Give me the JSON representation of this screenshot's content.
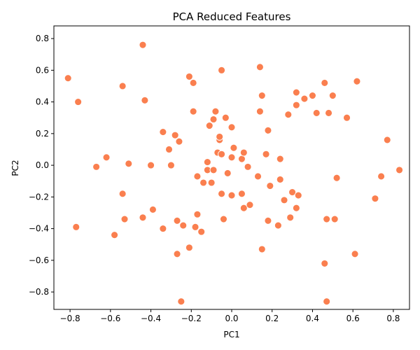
{
  "chart_data": {
    "type": "scatter",
    "title": "PCA Reduced Features",
    "xlabel": "PC1",
    "ylabel": "PC2",
    "xlim": [
      -0.88,
      0.88
    ],
    "ylim": [
      -0.91,
      0.88
    ],
    "xticks": [
      -0.8,
      -0.6,
      -0.4,
      -0.2,
      0.0,
      0.2,
      0.4,
      0.6,
      0.8
    ],
    "xtick_labels": [
      "−0.8",
      "−0.6",
      "−0.4",
      "−0.2",
      "0.0",
      "0.2",
      "0.4",
      "0.6",
      "0.8"
    ],
    "yticks": [
      -0.8,
      -0.6,
      -0.4,
      -0.2,
      0.0,
      0.2,
      0.4,
      0.6,
      0.8
    ],
    "ytick_labels": [
      "−0.8",
      "−0.6",
      "−0.4",
      "−0.2",
      "0.0",
      "0.2",
      "0.4",
      "0.6",
      "0.8"
    ],
    "grid": false,
    "marker_color": "#fa7f4f",
    "marker_edge_color": "#ffffff",
    "series": [
      {
        "points": [
          [
            -0.81,
            0.55
          ],
          [
            -0.76,
            0.4
          ],
          [
            -0.77,
            -0.39
          ],
          [
            -0.67,
            -0.01
          ],
          [
            -0.62,
            0.05
          ],
          [
            -0.58,
            -0.44
          ],
          [
            -0.54,
            0.5
          ],
          [
            -0.54,
            -0.18
          ],
          [
            -0.53,
            -0.34
          ],
          [
            -0.51,
            0.01
          ],
          [
            -0.44,
            0.76
          ],
          [
            -0.43,
            0.41
          ],
          [
            -0.44,
            -0.33
          ],
          [
            -0.4,
            0.0
          ],
          [
            -0.39,
            -0.28
          ],
          [
            -0.34,
            0.21
          ],
          [
            -0.34,
            -0.4
          ],
          [
            -0.31,
            0.1
          ],
          [
            -0.3,
            0.0
          ],
          [
            -0.28,
            0.19
          ],
          [
            -0.27,
            -0.35
          ],
          [
            -0.27,
            -0.56
          ],
          [
            -0.26,
            0.15
          ],
          [
            -0.24,
            -0.38
          ],
          [
            -0.25,
            -0.86
          ],
          [
            -0.21,
            0.56
          ],
          [
            -0.19,
            0.52
          ],
          [
            -0.19,
            0.34
          ],
          [
            -0.21,
            -0.52
          ],
          [
            -0.17,
            -0.07
          ],
          [
            -0.17,
            -0.31
          ],
          [
            -0.18,
            -0.39
          ],
          [
            -0.15,
            -0.42
          ],
          [
            -0.14,
            -0.11
          ],
          [
            -0.12,
            0.02
          ],
          [
            -0.12,
            -0.03
          ],
          [
            -0.11,
            0.25
          ],
          [
            -0.1,
            -0.11
          ],
          [
            -0.09,
            -0.03
          ],
          [
            -0.09,
            0.29
          ],
          [
            -0.08,
            0.34
          ],
          [
            -0.07,
            0.08
          ],
          [
            -0.06,
            0.16
          ],
          [
            -0.06,
            0.18
          ],
          [
            -0.05,
            0.07
          ],
          [
            -0.05,
            0.6
          ],
          [
            -0.05,
            -0.18
          ],
          [
            -0.04,
            -0.34
          ],
          [
            -0.03,
            0.3
          ],
          [
            -0.02,
            -0.05
          ],
          [
            0.0,
            0.05
          ],
          [
            0.0,
            0.24
          ],
          [
            0.0,
            -0.19
          ],
          [
            0.01,
            0.11
          ],
          [
            0.05,
            0.04
          ],
          [
            0.05,
            -0.18
          ],
          [
            0.06,
            -0.27
          ],
          [
            0.06,
            0.08
          ],
          [
            0.08,
            -0.01
          ],
          [
            0.09,
            -0.25
          ],
          [
            0.13,
            -0.07
          ],
          [
            0.14,
            0.62
          ],
          [
            0.14,
            0.34
          ],
          [
            0.15,
            0.44
          ],
          [
            0.15,
            -0.53
          ],
          [
            0.17,
            0.07
          ],
          [
            0.18,
            0.22
          ],
          [
            0.18,
            -0.35
          ],
          [
            0.19,
            -0.13
          ],
          [
            0.23,
            -0.38
          ],
          [
            0.24,
            0.04
          ],
          [
            0.24,
            -0.09
          ],
          [
            0.26,
            -0.22
          ],
          [
            0.28,
            0.32
          ],
          [
            0.29,
            -0.33
          ],
          [
            0.3,
            -0.17
          ],
          [
            0.32,
            0.46
          ],
          [
            0.32,
            0.38
          ],
          [
            0.32,
            -0.27
          ],
          [
            0.33,
            -0.19
          ],
          [
            0.36,
            0.42
          ],
          [
            0.4,
            0.44
          ],
          [
            0.42,
            0.33
          ],
          [
            0.46,
            0.52
          ],
          [
            0.46,
            -0.62
          ],
          [
            0.47,
            -0.34
          ],
          [
            0.47,
            -0.86
          ],
          [
            0.48,
            0.33
          ],
          [
            0.5,
            0.44
          ],
          [
            0.51,
            -0.34
          ],
          [
            0.52,
            -0.08
          ],
          [
            0.57,
            0.3
          ],
          [
            0.61,
            -0.56
          ],
          [
            0.62,
            0.53
          ],
          [
            0.71,
            -0.21
          ],
          [
            0.74,
            -0.07
          ],
          [
            0.77,
            0.16
          ],
          [
            0.83,
            -0.03
          ]
        ]
      }
    ]
  }
}
